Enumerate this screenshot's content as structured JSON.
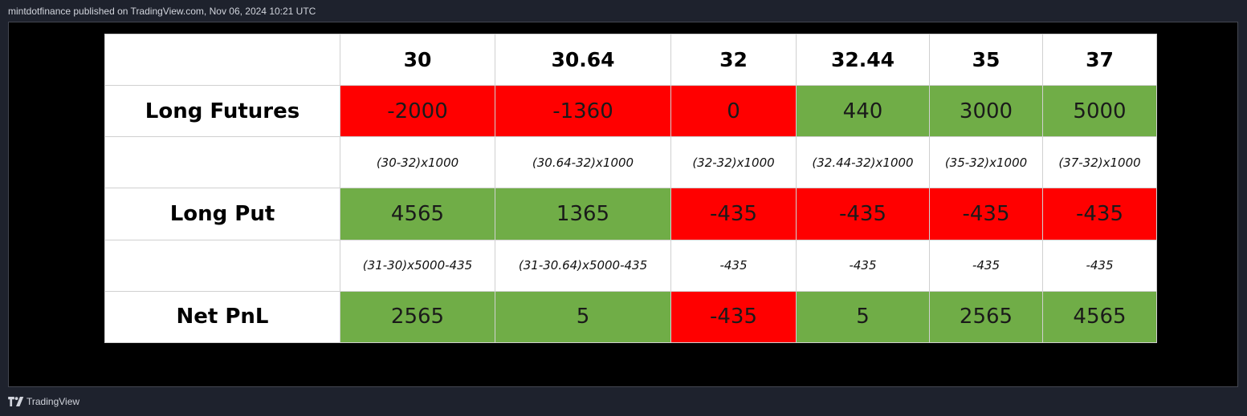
{
  "header": {
    "attribution": "mintdotfinance published on TradingView.com, Nov 06, 2024 10:21 UTC"
  },
  "table": {
    "columns": [
      "30",
      "30.64",
      "32",
      "32.44",
      "35",
      "37"
    ],
    "rows": [
      {
        "label": "Long Futures",
        "values": [
          "-2000",
          "-1360",
          "0",
          "440",
          "3000",
          "5000"
        ],
        "colors": [
          "red",
          "red",
          "red",
          "green",
          "green",
          "green"
        ]
      },
      {
        "label": "",
        "formulas": [
          "(30-32)x1000",
          "(30.64-32)x1000",
          "(32-32)x1000",
          "(32.44-32)x1000",
          "(35-32)x1000",
          "(37-32)x1000"
        ]
      },
      {
        "label": "Long Put",
        "values": [
          "4565",
          "1365",
          "-435",
          "-435",
          "-435",
          "-435"
        ],
        "colors": [
          "green",
          "green",
          "red",
          "red",
          "red",
          "red"
        ]
      },
      {
        "label": "",
        "formulas": [
          "(31-30)x5000-435",
          "(31-30.64)x5000-435",
          "-435",
          "-435",
          "-435",
          "-435"
        ]
      },
      {
        "label": "Net PnL",
        "values": [
          "2565",
          "5",
          "-435",
          "5",
          "2565",
          "4565"
        ],
        "colors": [
          "green",
          "green",
          "red",
          "green",
          "green",
          "green"
        ]
      }
    ]
  },
  "colors": {
    "red": "#ff0000",
    "green": "#70ad47",
    "background": "#000000",
    "chrome": "#1e222d"
  },
  "footer": {
    "logo_icon": "tradingview-logo-icon",
    "brand": "TradingView"
  }
}
